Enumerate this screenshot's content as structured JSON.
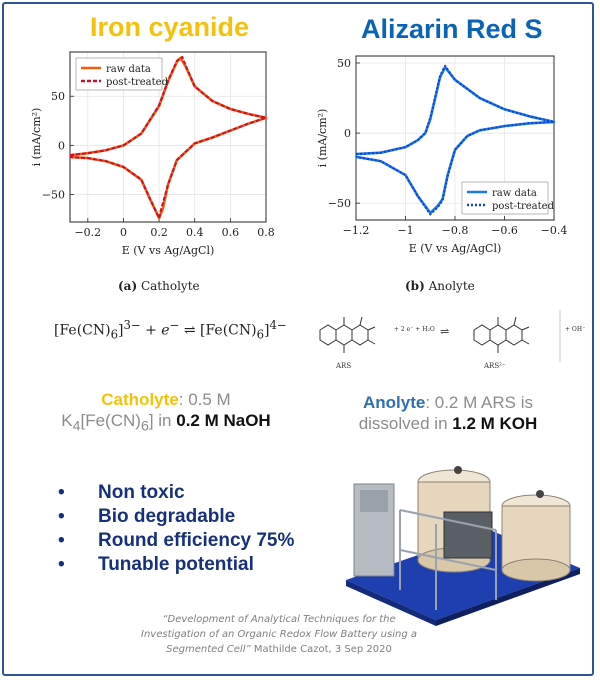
{
  "left": {
    "title": "Iron cyanide",
    "title_color": "#f4c20d",
    "caption_label": "(a)",
    "caption_text": "Catholyte",
    "equation": {
      "lhs_species": "[Fe(CN)",
      "lhs_sub": "6",
      "lhs_sup": "3−",
      "plus_e": " + e",
      "e_sup": "−",
      "arrow": " ⇌ ",
      "rhs_species": "[Fe(CN)",
      "rhs_sub": "6",
      "rhs_sup": "4−"
    },
    "desc": {
      "label": "Catholyte",
      "label_color": "#f4c20d",
      "line1_rest": ": 0.5 M",
      "k": "K",
      "k_sub": "4",
      "fe": "[Fe(CN)",
      "fe_sub": "6",
      "fe_end": "] in ",
      "solvent": "0.2 M NaOH"
    }
  },
  "right": {
    "title": "Alizarin Red S",
    "title_color": "#0b63b6",
    "caption_label": "(b)",
    "caption_text": "Anolyte",
    "reaction": {
      "reagents": "+ 2 e⁻ + H₂O",
      "arrow": "⇌",
      "product_extra": "+ OH⁻",
      "left_label": "ARS",
      "right_label": "ARS²⁻"
    },
    "desc": {
      "label": "Anolyte",
      "label_color": "#2f6fb3",
      "line1_rest": ": 0.2 M ARS is",
      "line2": "dissolved in ",
      "solvent": "1.2 M KOH"
    }
  },
  "chart_data": [
    {
      "type": "line",
      "xlabel": "E (V vs Ag/AgCl)",
      "ylabel": "i (mA/cm²)",
      "xlim": [
        -0.3,
        0.8
      ],
      "ylim": [
        -78,
        95
      ],
      "xticks": [
        -0.2,
        0,
        0.2,
        0.4,
        0.6,
        0.8
      ],
      "xtick_labels": [
        "−0.2",
        "0",
        "0.2",
        "0.4",
        "0.6",
        "0.8"
      ],
      "yticks": [
        -50,
        0,
        50
      ],
      "ytick_labels": [
        "−50",
        "0",
        "50"
      ],
      "grid": true,
      "legend": "top-left",
      "color": "#f25c0d",
      "series": [
        {
          "name": "raw data",
          "style": "solid",
          "x": [
            -0.3,
            -0.2,
            -0.1,
            0.0,
            0.1,
            0.2,
            0.25,
            0.3,
            0.32,
            0.35,
            0.4,
            0.5,
            0.6,
            0.7,
            0.8,
            0.7,
            0.6,
            0.5,
            0.4,
            0.3,
            0.25,
            0.22,
            0.2,
            0.15,
            0.1,
            0.0,
            -0.1,
            -0.2,
            -0.3
          ],
          "y": [
            -10,
            -8,
            -5,
            0,
            12,
            40,
            65,
            85,
            89,
            80,
            60,
            45,
            37,
            32,
            28,
            22,
            15,
            8,
            2,
            -15,
            -40,
            -65,
            -74,
            -55,
            -35,
            -22,
            -16,
            -13,
            -12
          ]
        },
        {
          "name": "post-treated",
          "style": "dashed",
          "x": [
            -0.3,
            -0.2,
            -0.1,
            0.0,
            0.1,
            0.2,
            0.25,
            0.3,
            0.33,
            0.35,
            0.4,
            0.5,
            0.6,
            0.7,
            0.8,
            0.7,
            0.6,
            0.5,
            0.4,
            0.3,
            0.25,
            0.21,
            0.2,
            0.15,
            0.1,
            0.0,
            -0.1,
            -0.2,
            -0.3
          ],
          "y": [
            -10,
            -8,
            -5,
            0,
            12,
            41,
            66,
            86,
            90,
            81,
            60,
            45,
            37,
            32,
            28,
            22,
            15,
            8,
            2,
            -15,
            -40,
            -66,
            -74,
            -55,
            -35,
            -22,
            -16,
            -13,
            -12
          ]
        }
      ]
    },
    {
      "type": "line",
      "xlabel": "E (V vs Ag/AgCl)",
      "ylabel": "i (mA/cm²)",
      "xlim": [
        -1.2,
        -0.4
      ],
      "ylim": [
        -62,
        55
      ],
      "xticks": [
        -1.2,
        -1.0,
        -0.8,
        -0.6,
        -0.4
      ],
      "xtick_labels": [
        "−1.2",
        "−1",
        "−0.8",
        "−0.6",
        "−0.4"
      ],
      "yticks": [
        -50,
        0,
        50
      ],
      "ytick_labels": [
        "−50",
        "0",
        "50"
      ],
      "grid": true,
      "legend": "bottom-right",
      "color": "#1a7ae0",
      "series": [
        {
          "name": "raw data",
          "style": "solid",
          "x": [
            -1.2,
            -1.1,
            -1.0,
            -0.95,
            -0.92,
            -0.9,
            -0.88,
            -0.86,
            -0.84,
            -0.8,
            -0.7,
            -0.6,
            -0.5,
            -0.4,
            -0.5,
            -0.6,
            -0.7,
            -0.75,
            -0.8,
            -0.83,
            -0.85,
            -0.87,
            -0.9,
            -0.95,
            -1.0,
            -1.1,
            -1.2
          ],
          "y": [
            -15,
            -14,
            -10,
            -5,
            0,
            10,
            25,
            40,
            47,
            38,
            25,
            17,
            12,
            8,
            7,
            5,
            2,
            -2,
            -12,
            -30,
            -47,
            -52,
            -57,
            -45,
            -30,
            -20,
            -17
          ]
        },
        {
          "name": "post-treated",
          "style": "dotted",
          "x": [
            -1.2,
            -1.1,
            -1.0,
            -0.95,
            -0.92,
            -0.9,
            -0.88,
            -0.86,
            -0.84,
            -0.8,
            -0.7,
            -0.6,
            -0.5,
            -0.4,
            -0.5,
            -0.6,
            -0.7,
            -0.75,
            -0.8,
            -0.83,
            -0.85,
            -0.87,
            -0.9,
            -0.95,
            -1.0,
            -1.1,
            -1.2
          ],
          "y": [
            -15,
            -14,
            -10,
            -5,
            0,
            11,
            26,
            41,
            48,
            38,
            25,
            17,
            12,
            8,
            7,
            5,
            2,
            -2,
            -12,
            -31,
            -48,
            -53,
            -58,
            -45,
            -30,
            -20,
            -17
          ]
        }
      ]
    }
  ],
  "bullets": [
    "Non toxic",
    "Bio degradable",
    "Round efficiency 75%",
    "Tunable potential"
  ],
  "bullet_symbol": "•",
  "bullet_color": "#16317a",
  "citation": {
    "line1": "“Development of Analytical Techniques for the",
    "line2": "Investigation of an Organic Redox Flow Battery using a",
    "line3_italic": "Segmented Cell”",
    "line3_rest": " Mathilde Cazot, 3 Sep 2020"
  }
}
